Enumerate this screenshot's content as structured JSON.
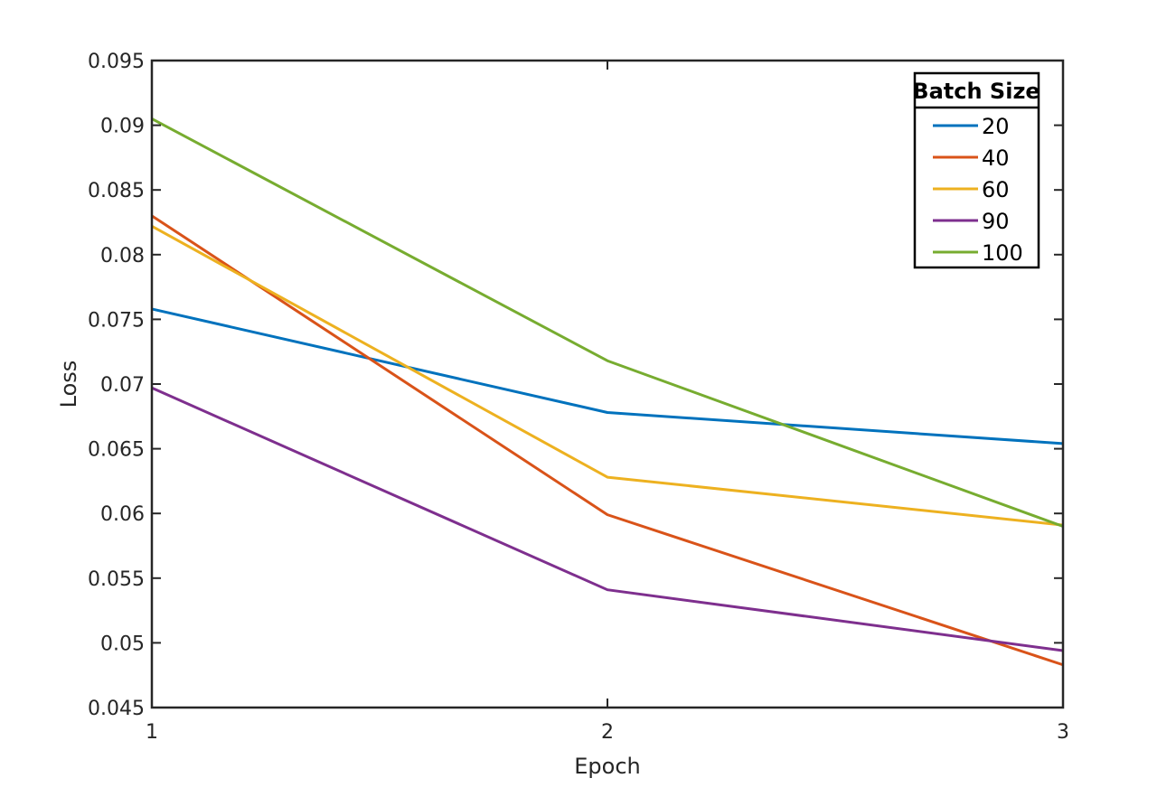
{
  "chart_data": {
    "type": "line",
    "xlabel": "Epoch",
    "ylabel": "Loss",
    "x": [
      1,
      2,
      3
    ],
    "xticks": [
      "1",
      "2",
      "3"
    ],
    "yticks": [
      "0.045",
      "0.05",
      "0.055",
      "0.06",
      "0.065",
      "0.07",
      "0.075",
      "0.08",
      "0.085",
      "0.09",
      "0.095"
    ],
    "xlim": [
      1,
      3
    ],
    "ylim": [
      0.045,
      0.095
    ],
    "grid": false,
    "legend": {
      "title": "Batch Size",
      "placement": "top-right"
    },
    "series": [
      {
        "name": "20",
        "color": "#0072BD",
        "values": [
          0.0758,
          0.0678,
          0.0654
        ]
      },
      {
        "name": "40",
        "color": "#D95319",
        "values": [
          0.083,
          0.0599,
          0.0483
        ]
      },
      {
        "name": "60",
        "color": "#EDB120",
        "values": [
          0.0822,
          0.0628,
          0.0591
        ]
      },
      {
        "name": "90",
        "color": "#7E2F8E",
        "values": [
          0.0697,
          0.0541,
          0.0494
        ]
      },
      {
        "name": "100",
        "color": "#77AC30",
        "values": [
          0.0905,
          0.0718,
          0.059
        ]
      }
    ]
  }
}
